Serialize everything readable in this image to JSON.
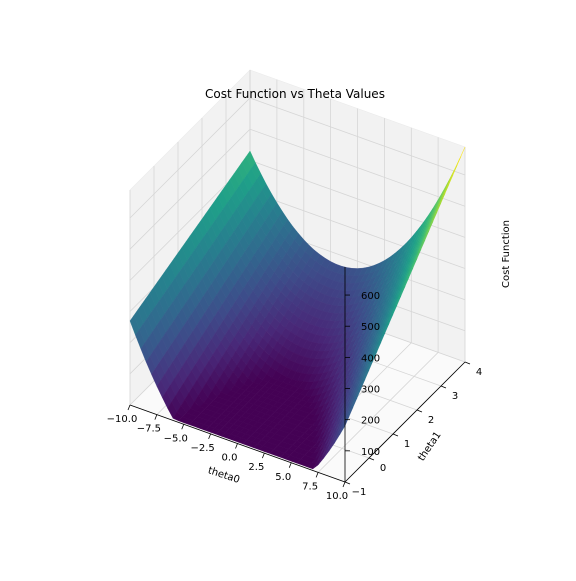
{
  "chart_data": {
    "type": "surface",
    "title": "Cost Function vs Theta Values",
    "xlabel": "theta0",
    "ylabel": "theta1",
    "zlabel": "Cost Function",
    "xlim": [
      -10,
      10
    ],
    "ylim": [
      -1,
      4
    ],
    "zlim": [
      0,
      690
    ],
    "x_ticks": [
      -10,
      -7.5,
      -5,
      -2.5,
      0,
      2.5,
      5,
      7.5,
      10
    ],
    "x_tick_labels": [
      "−10.0",
      "−7.5",
      "−5.0",
      "−2.5",
      "0.0",
      "2.5",
      "5.0",
      "7.5",
      "10.0"
    ],
    "y_ticks": [
      -1,
      0,
      1,
      2,
      3,
      4
    ],
    "y_tick_labels": [
      "−1",
      "0",
      "1",
      "2",
      "3",
      "4"
    ],
    "z_ticks": [
      100,
      200,
      300,
      400,
      500,
      600
    ],
    "z_tick_labels": [
      "100",
      "200",
      "300",
      "400",
      "500",
      "600"
    ],
    "colormap": "viridis",
    "colormap_stops": [
      "#440154",
      "#482878",
      "#3e4a89",
      "#31688e",
      "#26828e",
      "#1f9e89",
      "#35b779",
      "#6ece58",
      "#b5de2b",
      "#fde725"
    ],
    "grid": true,
    "surface_corner_values": [
      {
        "theta0": -10,
        "theta1": -1,
        "cost": 270
      },
      {
        "theta0": 10,
        "theta1": -1,
        "cost": 180
      },
      {
        "theta0": -10,
        "theta1": 4,
        "cost": 430
      },
      {
        "theta0": 10,
        "theta1": 4,
        "cost": 690
      }
    ],
    "surface_minimum": {
      "theta0": -2.5,
      "theta1": 1.2,
      "cost": 5
    }
  }
}
